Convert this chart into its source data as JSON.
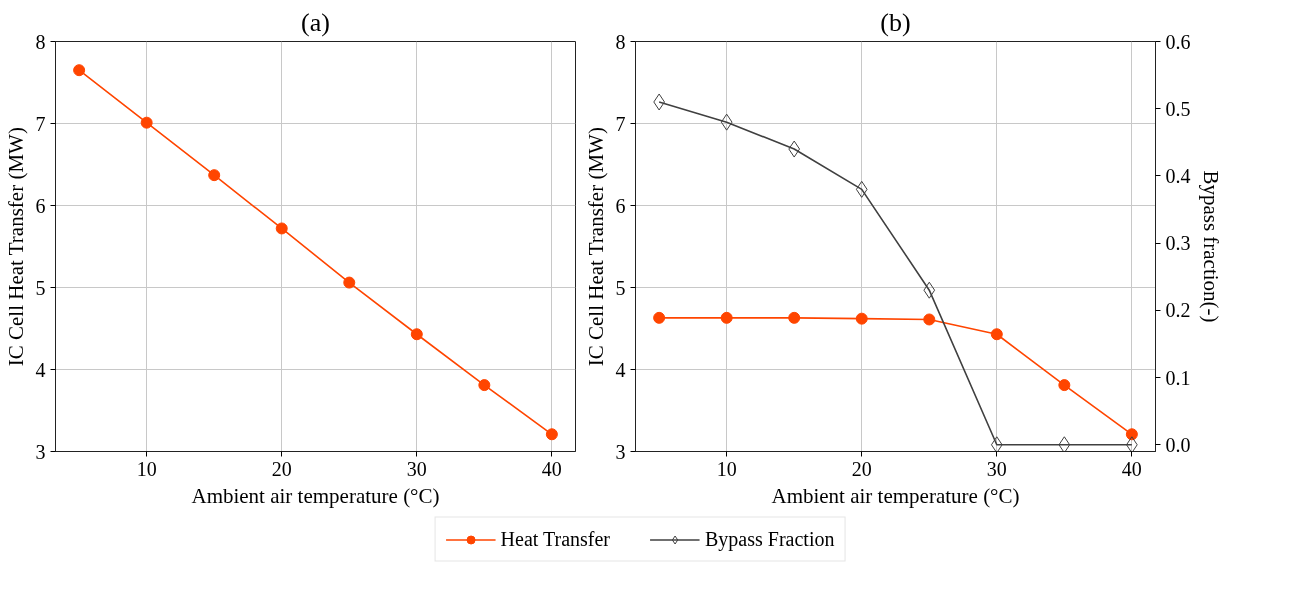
{
  "chart_data": [
    {
      "type": "line",
      "title": "(a)",
      "xlabel": "Ambient air temperature (°C)",
      "ylabel": "IC Cell Heat Transfer (MW)",
      "x": [
        5,
        10,
        15,
        20,
        25,
        30,
        35,
        40
      ],
      "xlim": [
        3.25,
        41.75
      ],
      "xticks": [
        10,
        20,
        30,
        40
      ],
      "ylim": [
        3,
        8
      ],
      "yticks": [
        3,
        4,
        5,
        6,
        7,
        8
      ],
      "grid": true,
      "legend": false,
      "series": [
        {
          "color": "#ff4500",
          "marker": "circle",
          "values": [
            7.65,
            7.01,
            6.37,
            5.72,
            5.06,
            4.43,
            3.81,
            3.21
          ]
        }
      ]
    },
    {
      "type": "line",
      "title": "(b)",
      "xlabel": "Ambient air temperature (°C)",
      "ylabel": "IC Cell Heat Transfer (MW)",
      "y2label": "Bypass fraction(-)",
      "x": [
        5,
        10,
        15,
        20,
        25,
        30,
        35,
        40
      ],
      "xlim": [
        3.25,
        41.75
      ],
      "xticks": [
        10,
        20,
        30,
        40
      ],
      "ylim": [
        3,
        8
      ],
      "yticks": [
        3,
        4,
        5,
        6,
        7,
        8
      ],
      "y2lim": [
        -0.01,
        0.6
      ],
      "y2ticks": [
        {
          "value": 0,
          "label": "0.0"
        },
        0.1,
        0.2,
        0.3,
        0.4,
        0.5,
        0.6
      ],
      "grid": true,
      "legend": "bottom",
      "series": [
        {
          "name": "Heat Transfer",
          "color": "#ff4500",
          "marker": "circle",
          "values": [
            4.63,
            4.63,
            4.63,
            4.62,
            4.61,
            4.43,
            3.81,
            3.21
          ]
        },
        {
          "name": "Bypass Fraction",
          "color": "#404040",
          "marker": "diamond",
          "axis": "y2",
          "values": [
            0.51,
            0.48,
            0.44,
            0.38,
            0.23,
            0,
            0,
            0
          ]
        }
      ]
    }
  ]
}
